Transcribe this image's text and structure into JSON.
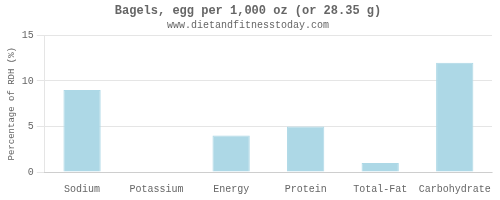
{
  "chart_data": {
    "type": "bar",
    "title": "Bagels, egg per 1,000 oz (or 28.35 g)",
    "subtitle": "www.dietandfitnesstoday.com",
    "categories": [
      "Sodium",
      "Potassium",
      "Energy",
      "Protein",
      "Total-Fat",
      "Carbohydrate"
    ],
    "values": [
      9.0,
      0.0,
      4.0,
      5.0,
      1.0,
      12.0
    ],
    "color": "#add8e6",
    "ylabel": "Percentage of RDH (%)",
    "ylim": [
      0,
      15
    ],
    "yticks": [
      0,
      5,
      10,
      15
    ],
    "grid": true
  }
}
